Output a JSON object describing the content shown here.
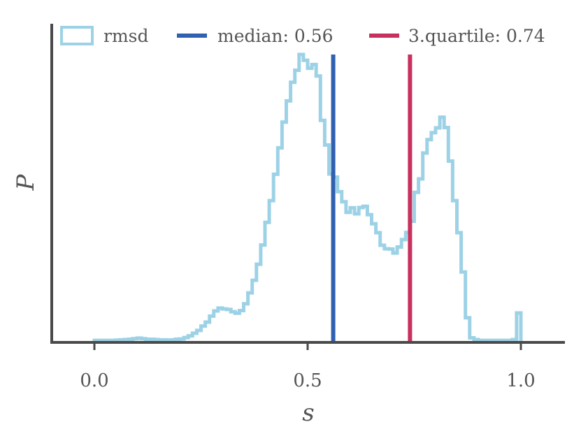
{
  "chart_data": {
    "type": "histogram",
    "xlabel": "s",
    "ylabel": "P",
    "xlim": [
      -0.1,
      1.1
    ],
    "ylim": [
      0,
      1.04
    ],
    "xticks": [
      0.0,
      0.5,
      1.0
    ],
    "xtick_labels": [
      "0.0",
      "0.5",
      "1.0"
    ],
    "grid": false,
    "legend_position": "top",
    "series": [
      {
        "name": "rmsd",
        "style": "step",
        "color": "#9dd2e6",
        "bin_edges": [
          0.0,
          0.01,
          0.02,
          0.03,
          0.04,
          0.05,
          0.06,
          0.07,
          0.08,
          0.09,
          0.1,
          0.11,
          0.12,
          0.13,
          0.14,
          0.15,
          0.16,
          0.17,
          0.18,
          0.19,
          0.2,
          0.21,
          0.22,
          0.23,
          0.24,
          0.25,
          0.26,
          0.27,
          0.28,
          0.29,
          0.3,
          0.31,
          0.32,
          0.33,
          0.34,
          0.35,
          0.36,
          0.37,
          0.38,
          0.39,
          0.4,
          0.41,
          0.42,
          0.43,
          0.44,
          0.45,
          0.46,
          0.47,
          0.48,
          0.49,
          0.5,
          0.51,
          0.52,
          0.53,
          0.54,
          0.55,
          0.56,
          0.57,
          0.58,
          0.59,
          0.6,
          0.61,
          0.62,
          0.63,
          0.64,
          0.65,
          0.66,
          0.67,
          0.68,
          0.69,
          0.7,
          0.71,
          0.72,
          0.73,
          0.74,
          0.75,
          0.76,
          0.77,
          0.78,
          0.79,
          0.8,
          0.81,
          0.82,
          0.83,
          0.84,
          0.85,
          0.86,
          0.87,
          0.88,
          0.89,
          0.9,
          0.91,
          0.92,
          0.93,
          0.94,
          0.95,
          0.96,
          0.97,
          0.98,
          0.99,
          1.0
        ],
        "values": [
          0.002,
          0.002,
          0.002,
          0.002,
          0.002,
          0.003,
          0.004,
          0.005,
          0.006,
          0.008,
          0.01,
          0.008,
          0.006,
          0.006,
          0.005,
          0.004,
          0.004,
          0.003,
          0.004,
          0.006,
          0.007,
          0.012,
          0.018,
          0.027,
          0.037,
          0.052,
          0.066,
          0.087,
          0.105,
          0.115,
          0.112,
          0.11,
          0.102,
          0.097,
          0.106,
          0.13,
          0.168,
          0.212,
          0.268,
          0.335,
          0.414,
          0.49,
          0.582,
          0.674,
          0.764,
          0.838,
          0.903,
          0.945,
          1.0,
          0.98,
          0.952,
          0.965,
          0.925,
          0.77,
          0.684,
          0.583,
          0.572,
          0.521,
          0.486,
          0.449,
          0.465,
          0.444,
          0.466,
          0.47,
          0.441,
          0.409,
          0.378,
          0.334,
          0.322,
          0.321,
          0.307,
          0.328,
          0.354,
          0.379,
          0.418,
          0.519,
          0.566,
          0.656,
          0.703,
          0.727,
          0.744,
          0.781,
          0.745,
          0.628,
          0.49,
          0.378,
          0.241,
          0.081,
          0.011,
          0.005,
          0.002,
          0.002,
          0.002,
          0.002,
          0.002,
          0.002,
          0.002,
          0.002,
          0.005,
          0.098
        ]
      }
    ],
    "vlines": [
      {
        "name": "median: 0.56",
        "x": 0.56,
        "color": "#3060b0"
      },
      {
        "name": "3.quartile: 0.74",
        "x": 0.74,
        "color": "#c8305e"
      }
    ]
  }
}
